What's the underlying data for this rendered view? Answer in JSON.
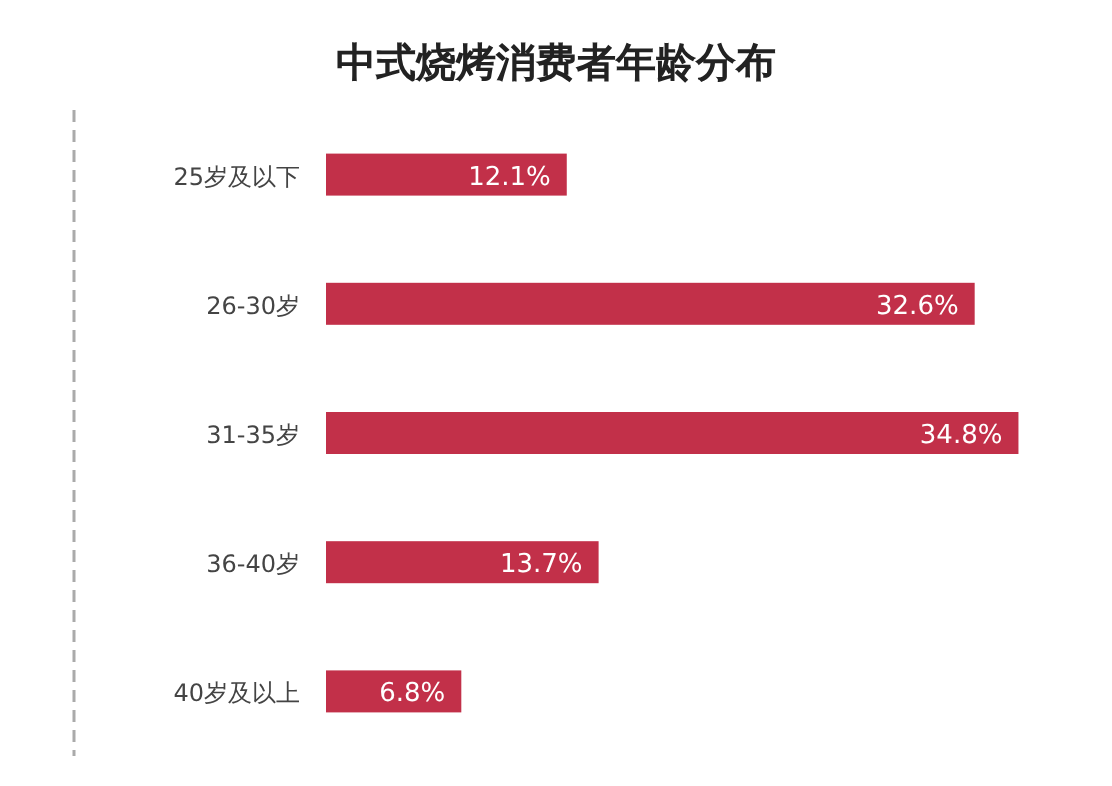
{
  "chart_data": {
    "type": "bar",
    "orientation": "horizontal",
    "title": "中式烧烤消费者年龄分布",
    "categories": [
      "25岁及以下",
      "26-30岁",
      "31-35岁",
      "36-40岁",
      "40岁及以上"
    ],
    "values": [
      12.1,
      32.6,
      34.8,
      13.7,
      6.8
    ],
    "value_labels": [
      "12.1%",
      "32.6%",
      "34.8%",
      "13.7%",
      "6.8%"
    ],
    "color": "#c23049"
  }
}
